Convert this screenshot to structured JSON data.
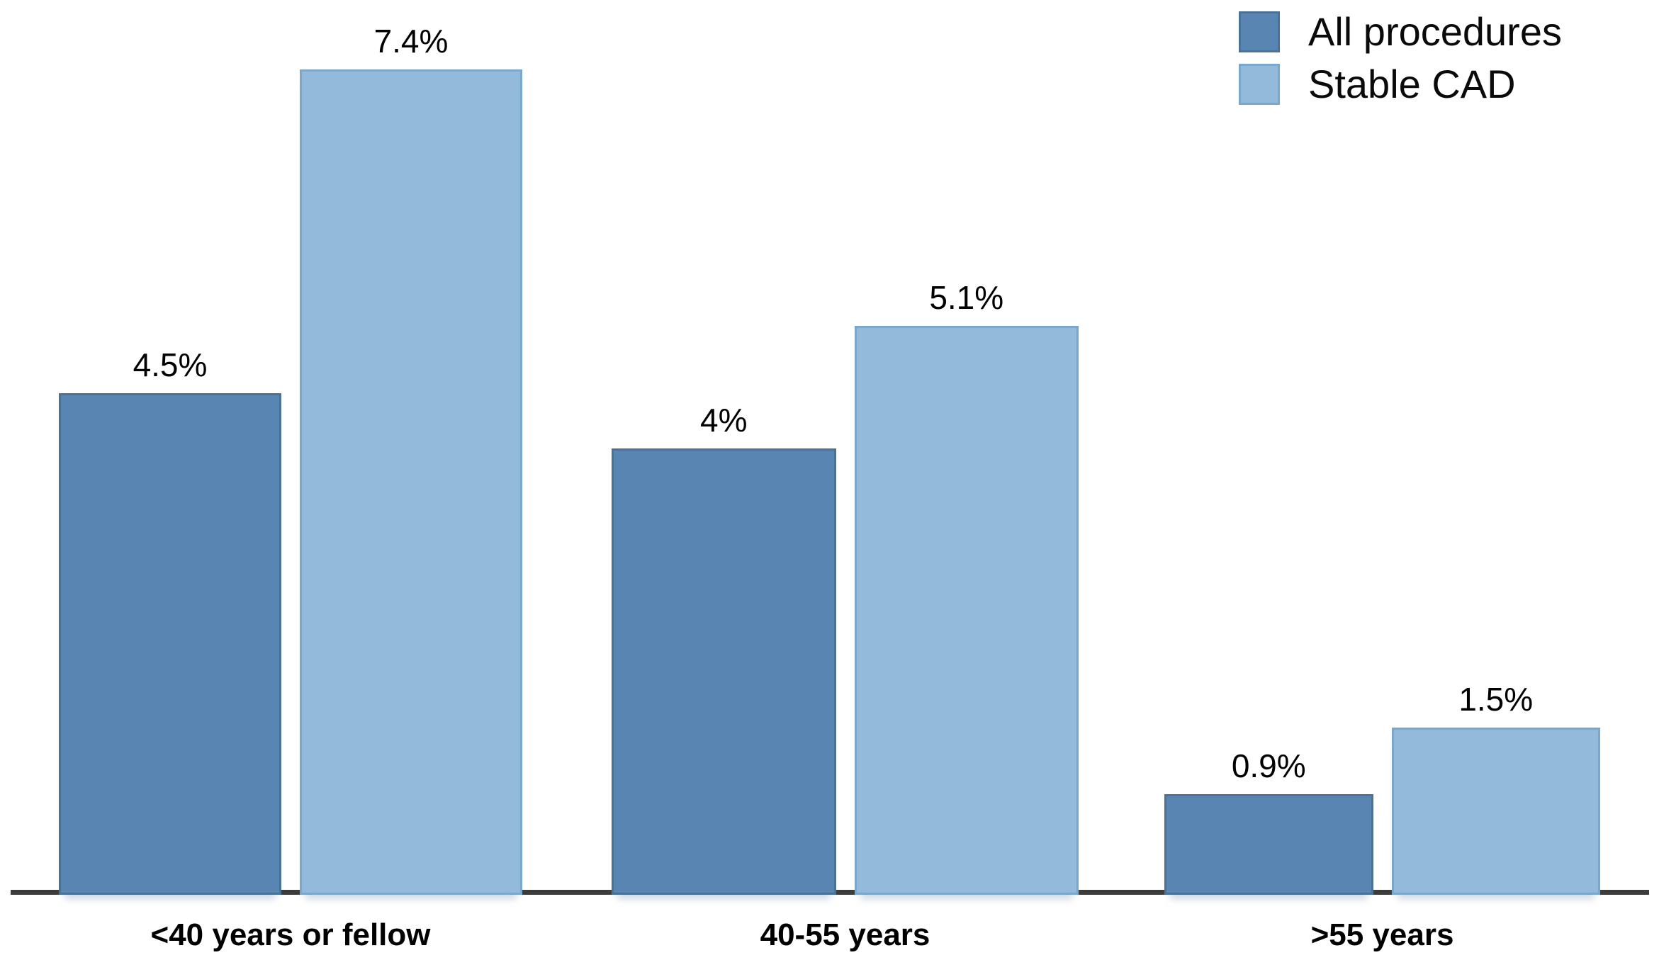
{
  "chart_data": {
    "type": "bar",
    "categories": [
      "<40 years or fellow",
      "40-55 years",
      ">55 years"
    ],
    "series": [
      {
        "name": "All procedures",
        "values": [
          4.5,
          4.0,
          0.9
        ],
        "value_labels": [
          "4.5%",
          "4%",
          "0.9%"
        ],
        "color": "#5885B2",
        "border_color": "#4a7196"
      },
      {
        "name": "Stable CAD",
        "values": [
          7.4,
          5.1,
          1.5
        ],
        "value_labels": [
          "7.4%",
          "5.1%",
          "1.5%"
        ],
        "color": "#93BADA",
        "border_color": "#7aa7cc"
      }
    ],
    "title": "",
    "xlabel": "",
    "ylabel": "",
    "ylim": [
      0,
      8
    ],
    "grid": false,
    "legend_position": "top-right",
    "axis_color": "#3c3c3c",
    "background_color": "#ffffff"
  },
  "legend": {
    "items": [
      {
        "label": "All procedures"
      },
      {
        "label": "Stable CAD"
      }
    ]
  }
}
